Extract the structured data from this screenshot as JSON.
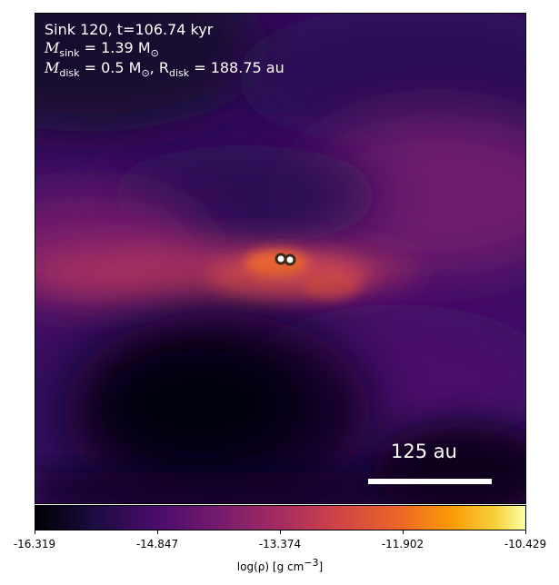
{
  "panel": {
    "line1": "Sink 120, t=106.74 kyr",
    "sink_mass_label": "M",
    "sink_mass_sub": "sink",
    "sink_mass_value": " = 1.39 M",
    "sun_symbol": "⊙",
    "disk_mass_label": "M",
    "disk_mass_sub": "disk",
    "disk_mass_value": " = 0.5 M",
    "disk_radius_label": ", R",
    "disk_radius_sub": "disk",
    "disk_radius_value": " = 188.75 au"
  },
  "scalebar": {
    "label": "125 au"
  },
  "colorbar": {
    "ticks": [
      "-16.319",
      "-14.847",
      "-13.374",
      "-11.902",
      "-10.429"
    ],
    "title_prefix": "log(ρ) [g cm",
    "title_exp": "−3",
    "title_suffix": "]",
    "colormap": "inferno"
  },
  "sinks": {
    "count": 2,
    "marker_color": "#ffffff",
    "edge_color": "#3a2a1a"
  }
}
